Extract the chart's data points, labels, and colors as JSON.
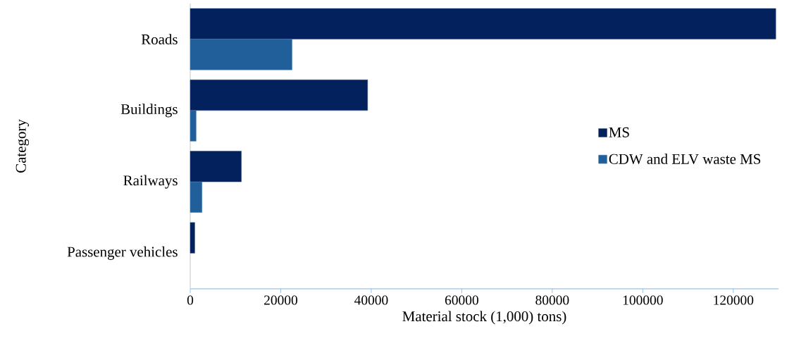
{
  "chart_data": {
    "type": "bar",
    "orientation": "horizontal",
    "xlabel": "Material stock (1,000) tons)",
    "ylabel": "Category",
    "categories": [
      "Roads",
      "Buildings",
      "Railways",
      "Passenger vehicles"
    ],
    "series": [
      {
        "name": "MS",
        "color": "#03215c",
        "values": [
          129400,
          39200,
          11300,
          1000
        ]
      },
      {
        "name": "CDW and ELV waste MS",
        "color": "#215f9a",
        "values": [
          22500,
          1300,
          2600,
          null
        ]
      }
    ],
    "xlim": [
      0,
      130000
    ],
    "xticks": [
      0,
      20000,
      40000,
      60000,
      80000,
      100000,
      120000
    ],
    "legend": "right"
  }
}
